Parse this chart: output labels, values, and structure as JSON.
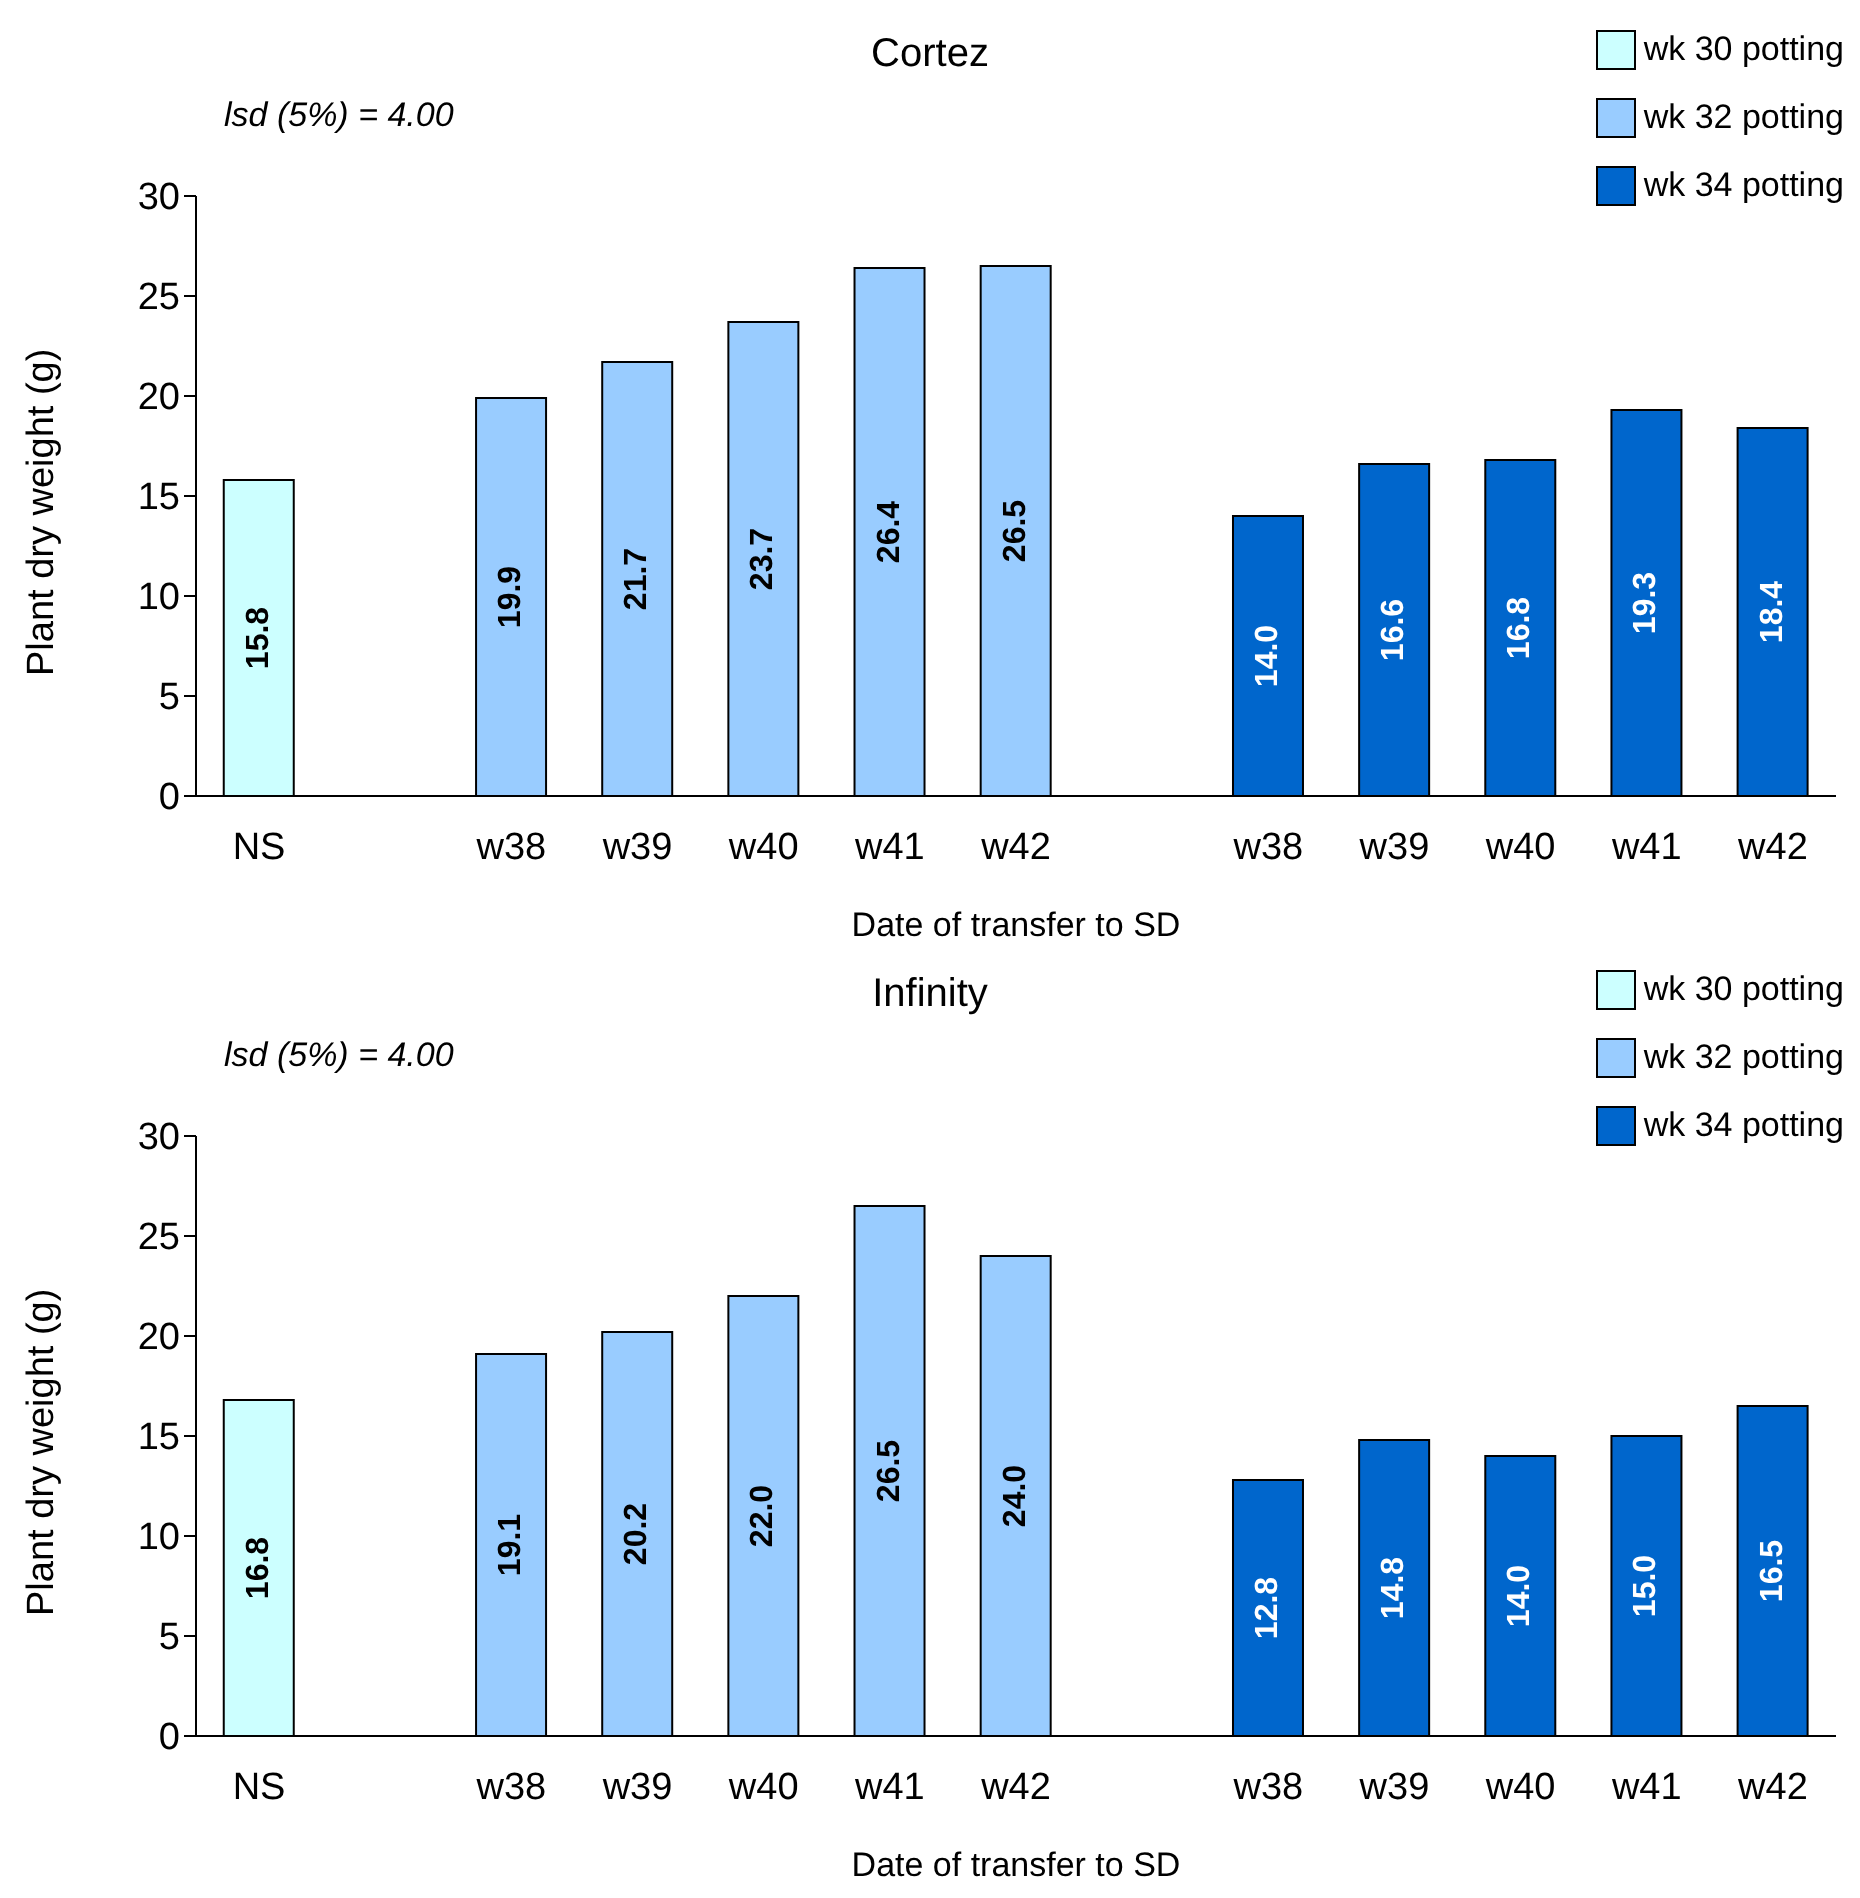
{
  "chart_data": [
    {
      "type": "bar",
      "title": "Cortez",
      "xlabel": "Date of transfer to SD",
      "ylabel": "Plant dry weight (g)",
      "annotations": [
        "lsd (5%) = 4.00"
      ],
      "categories": [
        "NS",
        null,
        "w38",
        "w39",
        "w40",
        "w41",
        "w42",
        null,
        "w38",
        "w39",
        "w40",
        "w41",
        "w42"
      ],
      "stacked": true,
      "legend": "top right",
      "grid": false,
      "ylim": [
        0,
        30
      ],
      "yticks": [
        0,
        5,
        10,
        15,
        20,
        25,
        30
      ],
      "series": [
        {
          "name": "wk 30 potting",
          "color": "#ccffff",
          "values": [
            15.8,
            null,
            null,
            null,
            null,
            null,
            null,
            null,
            null,
            null,
            null,
            null,
            null
          ],
          "value_labels": [
            "15.8",
            null,
            null,
            null,
            null,
            null,
            null,
            null,
            null,
            null,
            null,
            null,
            null
          ]
        },
        {
          "name": "wk 32 potting",
          "color": "#99ccff",
          "values": [
            null,
            null,
            19.9,
            21.7,
            23.7,
            26.4,
            26.5,
            null,
            null,
            null,
            null,
            null,
            null
          ],
          "value_labels": [
            null,
            null,
            "19.9",
            "21.7",
            "23.7",
            "26.4",
            "26.5",
            null,
            null,
            null,
            null,
            null,
            null
          ]
        },
        {
          "name": "wk 34 potting",
          "color": "#0066cc",
          "values": [
            null,
            null,
            null,
            null,
            null,
            null,
            null,
            null,
            14.0,
            16.6,
            16.8,
            19.3,
            18.4
          ],
          "value_labels": [
            null,
            null,
            null,
            null,
            null,
            null,
            null,
            null,
            "14.0",
            "16.6",
            "16.8",
            "19.3",
            "18.4"
          ]
        }
      ]
    },
    {
      "type": "bar",
      "title": "Infinity",
      "xlabel": "Date of transfer to SD",
      "ylabel": "Plant dry weight (g)",
      "annotations": [
        "lsd (5%) = 4.00"
      ],
      "categories": [
        "NS",
        null,
        "w38",
        "w39",
        "w40",
        "w41",
        "w42",
        null,
        "w38",
        "w39",
        "w40",
        "w41",
        "w42"
      ],
      "stacked": true,
      "legend": "top right",
      "grid": false,
      "ylim": [
        0,
        30
      ],
      "yticks": [
        0,
        5,
        10,
        15,
        20,
        25,
        30
      ],
      "series": [
        {
          "name": "wk 30 potting",
          "color": "#ccffff",
          "values": [
            16.8,
            null,
            null,
            null,
            null,
            null,
            null,
            null,
            null,
            null,
            null,
            null,
            null
          ],
          "value_labels": [
            "16.8",
            null,
            null,
            null,
            null,
            null,
            null,
            null,
            null,
            null,
            null,
            null,
            null
          ]
        },
        {
          "name": "wk 32 potting",
          "color": "#99ccff",
          "values": [
            null,
            null,
            19.1,
            20.2,
            22.0,
            26.5,
            24.0,
            null,
            null,
            null,
            null,
            null,
            null
          ],
          "value_labels": [
            null,
            null,
            "19.1",
            "20.2",
            "22.0",
            "26.5",
            "24.0",
            null,
            null,
            null,
            null,
            null,
            null
          ]
        },
        {
          "name": "wk 34 potting",
          "color": "#0066cc",
          "values": [
            null,
            null,
            null,
            null,
            null,
            null,
            null,
            null,
            12.8,
            14.8,
            14.0,
            15.0,
            16.5
          ],
          "value_labels": [
            null,
            null,
            null,
            null,
            null,
            null,
            null,
            null,
            "12.8",
            "14.8",
            "14.0",
            "15.0",
            "16.5"
          ]
        }
      ]
    }
  ]
}
